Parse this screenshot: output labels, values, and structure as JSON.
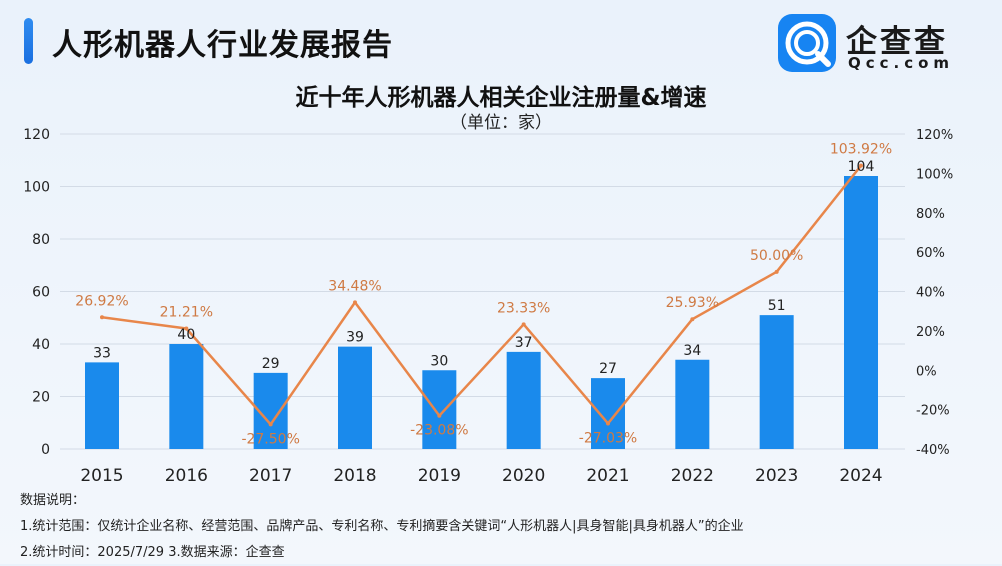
{
  "header": {
    "title": "人形机器人行业发展报告",
    "logo_text": "企查查",
    "logo_sub": "Qcc.com"
  },
  "colors": {
    "bar": "#1a8aec",
    "line": "#e8864a",
    "line_label": "#cf7a44",
    "accent": "#1a6fe0"
  },
  "chart_data": {
    "type": "bar",
    "title": "近十年人形机器人相关企业注册量&增速",
    "subtitle": "（单位：家）",
    "categories": [
      "2015",
      "2016",
      "2017",
      "2018",
      "2019",
      "2020",
      "2021",
      "2022",
      "2023",
      "2024"
    ],
    "series": [
      {
        "type": "bar",
        "values": [
          33,
          40,
          29,
          39,
          30,
          37,
          27,
          34,
          51,
          104
        ],
        "value_labels": [
          "33",
          "40",
          "29",
          "39",
          "30",
          "37",
          "27",
          "34",
          "51",
          "104"
        ]
      },
      {
        "type": "line",
        "axis": "right",
        "values": [
          26.92,
          21.21,
          -27.5,
          34.48,
          -23.08,
          23.33,
          -27.03,
          25.93,
          50.0,
          103.92
        ],
        "value_labels": [
          "26.92%",
          "21.21%",
          "-27.50%",
          "34.48%",
          "-23.08%",
          "23.33%",
          "-27.03%",
          "25.93%",
          "50.00%",
          "103.92%"
        ]
      }
    ],
    "ylim_left": [
      0,
      120
    ],
    "ylim_right": [
      -40,
      120
    ],
    "yticks_left": [
      "0",
      "20",
      "40",
      "60",
      "80",
      "100",
      "120"
    ],
    "yticks_right": [
      "-40%",
      "-20%",
      "0%",
      "20%",
      "40%",
      "60%",
      "80%",
      "100%",
      "120%"
    ],
    "grid": true,
    "legend": "none"
  },
  "notes": {
    "heading": "数据说明：",
    "line1": "1.统计范围：仅统计企业名称、经营范围、品牌产品、专利名称、专利摘要含关键词“人形机器人|具身智能|具身机器人”的企业",
    "line2": " 2.统计时间：2025/7/29  3.数据来源：企查查"
  }
}
